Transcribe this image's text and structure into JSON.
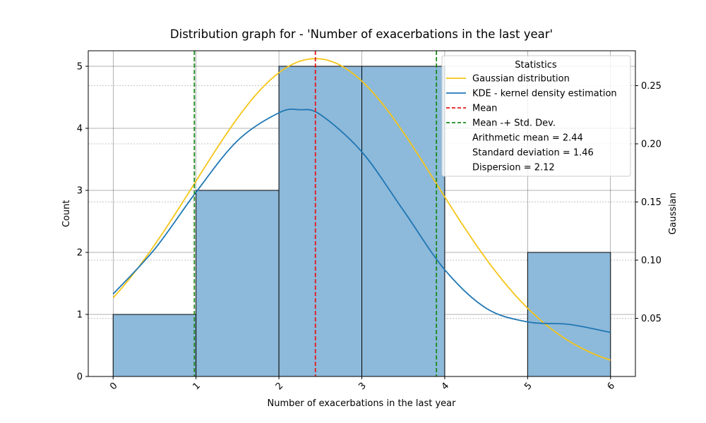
{
  "chart_data": {
    "type": "bar",
    "title": "Distribution graph for - 'Number of exacerbations in the last year'",
    "xlabel": "Number of exacerbations in the last year",
    "ylabel": "Count",
    "y2label": "Gaussian",
    "xlim": [
      -0.3,
      6.3
    ],
    "ylim": [
      0,
      5.25
    ],
    "y2lim": [
      0.0,
      0.28
    ],
    "x_ticks": [
      "0",
      "1",
      "2",
      "3",
      "4",
      "5",
      "6"
    ],
    "y_ticks": [
      "0",
      "1",
      "2",
      "3",
      "4",
      "5"
    ],
    "y2_ticks": [
      "0.05",
      "0.10",
      "0.15",
      "0.20",
      "0.25"
    ],
    "grid": true,
    "histogram": {
      "bins": [
        [
          0,
          1
        ],
        [
          1,
          2
        ],
        [
          2,
          3
        ],
        [
          3,
          4
        ],
        [
          4,
          5
        ],
        [
          5,
          6
        ]
      ],
      "counts": [
        1,
        3,
        5,
        5,
        0,
        2
      ],
      "color": "#8db9da"
    },
    "series": [
      {
        "name": "Gaussian distribution",
        "type": "line",
        "axis": "right",
        "color": "#f5c518",
        "mean": 2.44,
        "std": 1.46
      },
      {
        "name": "KDE - kernel density estimation",
        "type": "line",
        "axis": "left",
        "color": "#1f77b4",
        "x": [
          0,
          0.5,
          1,
          1.5,
          2,
          2.25,
          2.5,
          3,
          3.5,
          4,
          4.5,
          5,
          5.5,
          6
        ],
        "y": [
          1.33,
          2.05,
          2.97,
          3.8,
          4.25,
          4.3,
          4.22,
          3.62,
          2.68,
          1.72,
          1.1,
          0.88,
          0.84,
          0.71
        ]
      },
      {
        "name": "Mean",
        "type": "vline",
        "color": "#e31a1c",
        "x": 2.44
      },
      {
        "name": "Mean -+ Std. Dev.",
        "type": "vline",
        "color": "#1a8a1a",
        "x": [
          0.98,
          3.9
        ]
      }
    ],
    "legend": {
      "title": "Statistics",
      "position": "top-right",
      "entries": [
        "Gaussian distribution",
        "KDE - kernel density estimation",
        "Mean",
        "Mean -+ Std. Dev.",
        "Arithmetic mean = 2.44",
        "Standard deviation = 1.46",
        "Dispersion = 2.12"
      ]
    }
  }
}
